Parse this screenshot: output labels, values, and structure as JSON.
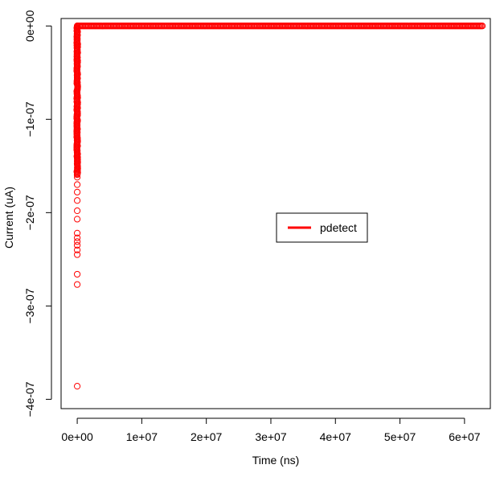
{
  "chart_data": {
    "type": "scatter",
    "xlabel": "Time (ns)",
    "ylabel": "Current (uA)",
    "xlim": [
      -2500000.0,
      64000000.0
    ],
    "ylim": [
      -4.1e-07,
      8e-09
    ],
    "x_ticks": [
      {
        "value": 0,
        "label": "0e+00"
      },
      {
        "value": 10000000,
        "label": "1e+07"
      },
      {
        "value": 20000000,
        "label": "2e+07"
      },
      {
        "value": 30000000,
        "label": "3e+07"
      },
      {
        "value": 40000000,
        "label": "4e+07"
      },
      {
        "value": 50000000,
        "label": "5e+07"
      },
      {
        "value": 60000000,
        "label": "6e+07"
      }
    ],
    "y_ticks": [
      {
        "value": 0,
        "label": "0e+00"
      },
      {
        "value": -1e-07,
        "label": "-1e-07"
      },
      {
        "value": -2e-07,
        "label": "-2e-07"
      },
      {
        "value": -3e-07,
        "label": "-3e-07"
      },
      {
        "value": -4e-07,
        "label": "-4e-07"
      }
    ],
    "grid": false,
    "legend": {
      "position": "right-center",
      "entries": [
        "pdetect"
      ]
    },
    "series": [
      {
        "name": "pdetect",
        "color": "#ff0000",
        "marker": "open-circle",
        "outliers": [
          {
            "x": 0,
            "y": -3.86e-07
          },
          {
            "x": 0,
            "y": -2.77e-07
          },
          {
            "x": 0,
            "y": -2.66e-07
          },
          {
            "x": 0,
            "y": -2.45e-07
          },
          {
            "x": 0,
            "y": -2.4e-07
          },
          {
            "x": 0,
            "y": -2.35e-07
          },
          {
            "x": 0,
            "y": -2.31e-07
          },
          {
            "x": 0,
            "y": -2.27e-07
          },
          {
            "x": 0,
            "y": -2.22e-07
          },
          {
            "x": 0,
            "y": -2.07e-07
          },
          {
            "x": 0,
            "y": -1.98e-07
          },
          {
            "x": 0,
            "y": -1.87e-07
          },
          {
            "x": 0,
            "y": -1.78e-07
          },
          {
            "x": 0,
            "y": -1.7e-07
          },
          {
            "x": 0,
            "y": -1.62e-07
          }
        ],
        "near_zero_cluster": {
          "x": 0,
          "y_range": [
            -1.6e-07,
            0
          ]
        },
        "flat_segment": {
          "x_range": [
            0,
            62800000
          ],
          "y": 0
        }
      }
    ]
  }
}
